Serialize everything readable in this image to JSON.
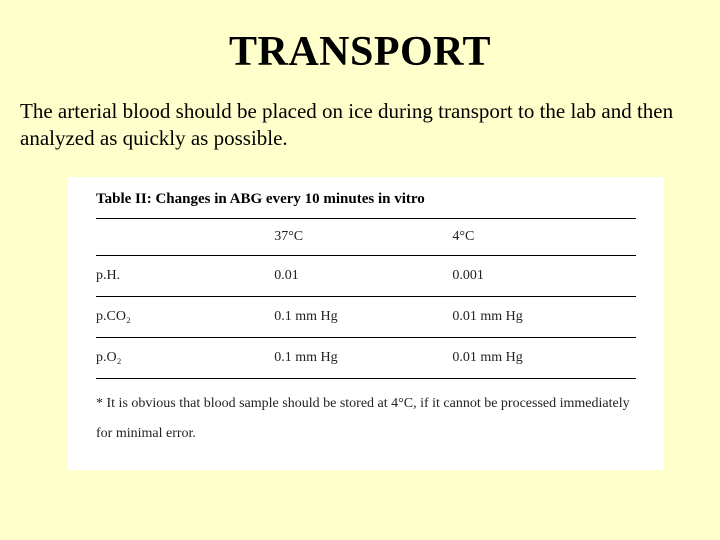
{
  "title": "TRANSPORT",
  "body": "The arterial blood should be placed on ice during transport to the lab and then analyzed as quickly as possible.",
  "table": {
    "title": "Table II: Changes in ABG every 10 minutes in vitro",
    "headers": {
      "col_a": "37°C",
      "col_b": "4°C"
    },
    "rows": [
      {
        "label": "p.H.",
        "a": "0.01",
        "b": "0.001"
      },
      {
        "label": "p.CO₂",
        "a": "0.1 mm Hg",
        "b": "0.01 mm Hg"
      },
      {
        "label": "p.O₂",
        "a": "0.1 mm Hg",
        "b": "0.01 mm Hg"
      }
    ],
    "footnote": "* It is obvious that blood sample should be stored at 4°C, if it cannot be processed immediately for minimal error."
  },
  "colors": {
    "background": "#ffffcc",
    "panel_background": "#ffffff",
    "text": "#000000",
    "rule": "#000000"
  }
}
